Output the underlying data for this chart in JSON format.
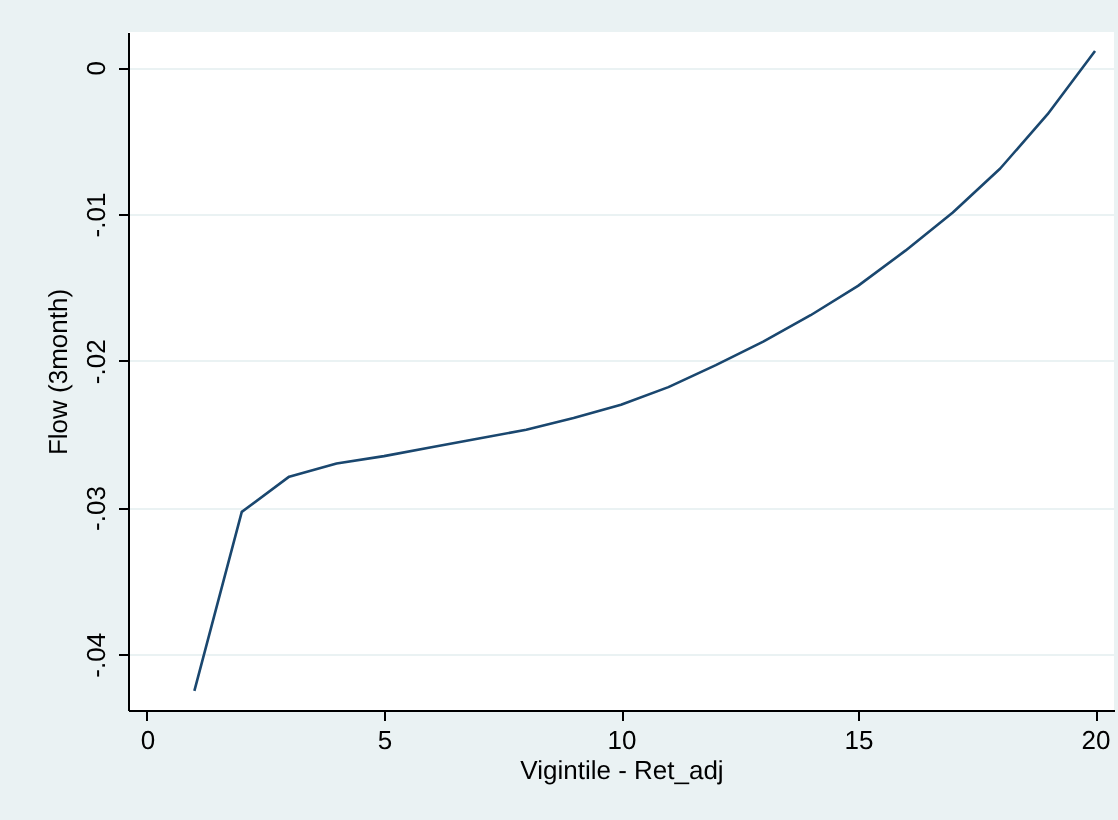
{
  "chart_data": {
    "type": "line",
    "xlabel": "Vigintile - Ret_adj",
    "ylabel": "Flow (3month)",
    "x": [
      1,
      2,
      3,
      4,
      5,
      6,
      7,
      8,
      9,
      10,
      11,
      12,
      13,
      14,
      15,
      16,
      17,
      18,
      19,
      20
    ],
    "series": [
      {
        "color": "#1a476f",
        "values": [
          -0.0425,
          -0.0303,
          -0.0279,
          -0.027,
          -0.0265,
          -0.0259,
          -0.0253,
          -0.0247,
          -0.0239,
          -0.023,
          -0.0218,
          -0.0203,
          -0.0187,
          -0.0169,
          -0.0149,
          -0.0125,
          -0.0099,
          -0.0069,
          -0.0032,
          0.0011
        ]
      }
    ],
    "xlim": [
      -0.4,
      20.4
    ],
    "ylim": [
      -0.0438,
      0.0024
    ],
    "xticks": [
      0,
      5,
      10,
      15,
      20
    ],
    "yticks": [
      0,
      {
        "value": -0.01,
        "label": "-.01"
      },
      {
        "value": -0.02,
        "label": "-.02"
      },
      {
        "value": -0.03,
        "label": "-.03"
      },
      {
        "value": -0.04,
        "label": "-.04"
      }
    ],
    "grid": "y",
    "marker": "none",
    "line_style": "solid"
  }
}
